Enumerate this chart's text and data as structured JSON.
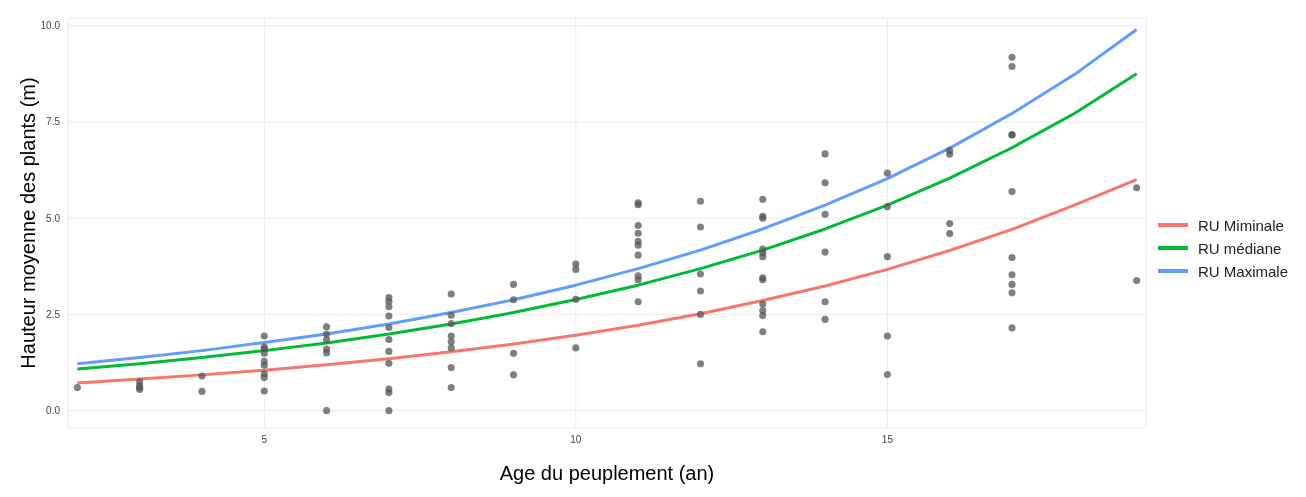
{
  "chart_data": {
    "type": "line",
    "xlabel": "Age du peuplement (an)",
    "ylabel": "Hauteur moyenne des plants (m)",
    "xlim": [
      1.85,
      19.15
    ],
    "ylim": [
      -0.45,
      10.2
    ],
    "xticks": [
      5,
      10,
      15
    ],
    "yticks": [
      {
        "value": 0,
        "label": "0.0"
      },
      {
        "value": 2.5,
        "label": "2.5"
      },
      {
        "value": 5,
        "label": "5.0"
      },
      {
        "value": 7.5,
        "label": "7.5"
      },
      {
        "value": 10,
        "label": "10.0"
      }
    ],
    "grid": true,
    "legend": "right",
    "marker": "none",
    "line_style": "solid",
    "series": [
      {
        "type": "scatter",
        "color": "#555555",
        "marker": "circle",
        "x": [
          2,
          3,
          3,
          3,
          3,
          4,
          4,
          5,
          5,
          5,
          5,
          5,
          5,
          5,
          5,
          5,
          6,
          6,
          6,
          6,
          6,
          6,
          7,
          7,
          7,
          7,
          7,
          7,
          7,
          7,
          7,
          7,
          7,
          8,
          8,
          8,
          8,
          8,
          8,
          8,
          8,
          9,
          9,
          9,
          9,
          10,
          10,
          10,
          10,
          11,
          11,
          11,
          11,
          11,
          11,
          11,
          11,
          11,
          11,
          12,
          12,
          12,
          12,
          12,
          12,
          13,
          13,
          13,
          13,
          13,
          13,
          13,
          13,
          13,
          13,
          13,
          13,
          14,
          14,
          14,
          14,
          14,
          14,
          15,
          15,
          15,
          15,
          15,
          16,
          16,
          16,
          16,
          17,
          17,
          17,
          17,
          17,
          17,
          17,
          17,
          17,
          17,
          19,
          19
        ],
        "values": [
          0.6,
          0.75,
          0.65,
          0.6,
          0.55,
          0.9,
          0.5,
          1.94,
          1.65,
          1.6,
          1.49,
          1.28,
          1.18,
          0.96,
          0.86,
          0.51,
          2.18,
          1.99,
          1.85,
          1.6,
          1.5,
          0,
          2.94,
          2.84,
          2.7,
          2.46,
          2.16,
          1.85,
          1.54,
          1.23,
          0.56,
          0.47,
          0,
          3.03,
          2.48,
          2.26,
          1.94,
          1.79,
          1.63,
          1.12,
          0.6,
          3.28,
          2.88,
          1.49,
          0.93,
          3.81,
          3.67,
          2.89,
          1.63,
          5.4,
          5.35,
          4.81,
          4.61,
          4.4,
          4.3,
          4.04,
          3.5,
          3.4,
          2.83,
          5.44,
          4.77,
          3.55,
          3.11,
          2.5,
          1.22,
          5.49,
          5.05,
          5.0,
          4.2,
          4.1,
          4.0,
          3.45,
          3.4,
          2.77,
          2.6,
          2.47,
          2.05,
          6.67,
          5.92,
          5.1,
          4.12,
          2.83,
          2.37,
          6.17,
          5.3,
          4.0,
          1.94,
          0.94,
          6.76,
          6.66,
          4.86,
          4.6,
          9.18,
          8.94,
          7.17,
          7.16,
          5.69,
          3.98,
          3.53,
          3.28,
          3.06,
          2.15,
          5.79,
          3.38
        ]
      },
      {
        "name": "RU Miminale",
        "color": "#f8766d",
        "x": [
          2,
          3,
          4,
          5,
          6,
          7,
          8,
          9,
          10,
          11,
          12,
          13,
          14,
          15,
          16,
          17,
          18,
          19
        ],
        "values": [
          0.72,
          0.82,
          0.93,
          1.05,
          1.19,
          1.35,
          1.53,
          1.73,
          1.96,
          2.22,
          2.52,
          2.86,
          3.24,
          3.67,
          4.16,
          4.71,
          5.34,
          6.0
        ]
      },
      {
        "name": "RU médiane",
        "color": "#00ba38",
        "x": [
          2,
          3,
          4,
          5,
          6,
          7,
          8,
          9,
          10,
          11,
          12,
          13,
          14,
          15,
          16,
          17,
          18,
          19
        ],
        "values": [
          1.08,
          1.22,
          1.38,
          1.56,
          1.76,
          1.99,
          2.25,
          2.55,
          2.89,
          3.26,
          3.69,
          4.17,
          4.72,
          5.34,
          6.04,
          6.83,
          7.72,
          8.75
        ]
      },
      {
        "name": "RU Maximale",
        "color": "#619cff",
        "x": [
          2,
          3,
          4,
          5,
          6,
          7,
          8,
          9,
          10,
          11,
          12,
          13,
          14,
          15,
          16,
          17,
          18,
          19
        ],
        "values": [
          1.22,
          1.38,
          1.56,
          1.77,
          1.99,
          2.25,
          2.55,
          2.88,
          3.26,
          3.69,
          4.17,
          4.72,
          5.34,
          6.03,
          6.82,
          7.72,
          8.73,
          9.9
        ]
      }
    ]
  }
}
